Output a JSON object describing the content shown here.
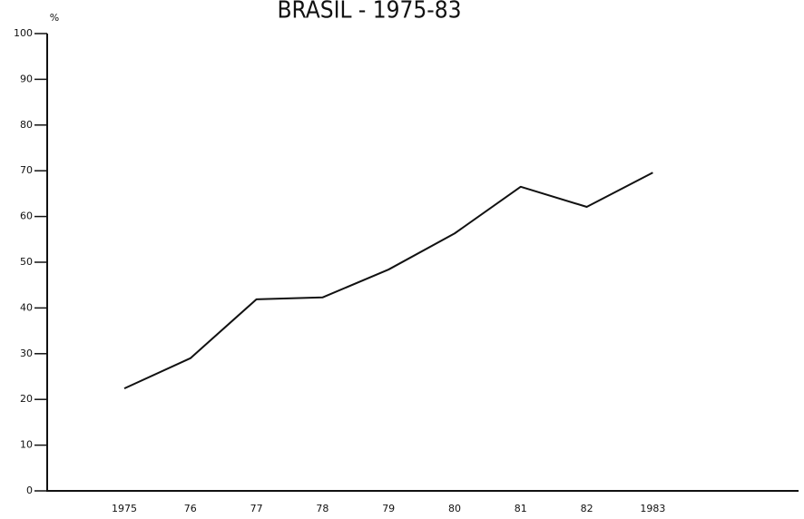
{
  "chart_data": {
    "type": "line",
    "title": "BRASIL - 1975-83",
    "y_label": "%",
    "categories": [
      "1975",
      "76",
      "77",
      "78",
      "79",
      "80",
      "81",
      "82",
      "1983"
    ],
    "values": [
      22.4,
      29,
      41.9,
      42.3,
      48.4,
      56.3,
      66.5,
      62.1,
      69.6
    ],
    "color": "#111111",
    "ylim": [
      0,
      100
    ],
    "yticks": [
      0,
      10,
      20,
      30,
      40,
      50,
      60,
      70,
      80,
      90,
      100
    ],
    "grid": false
  }
}
